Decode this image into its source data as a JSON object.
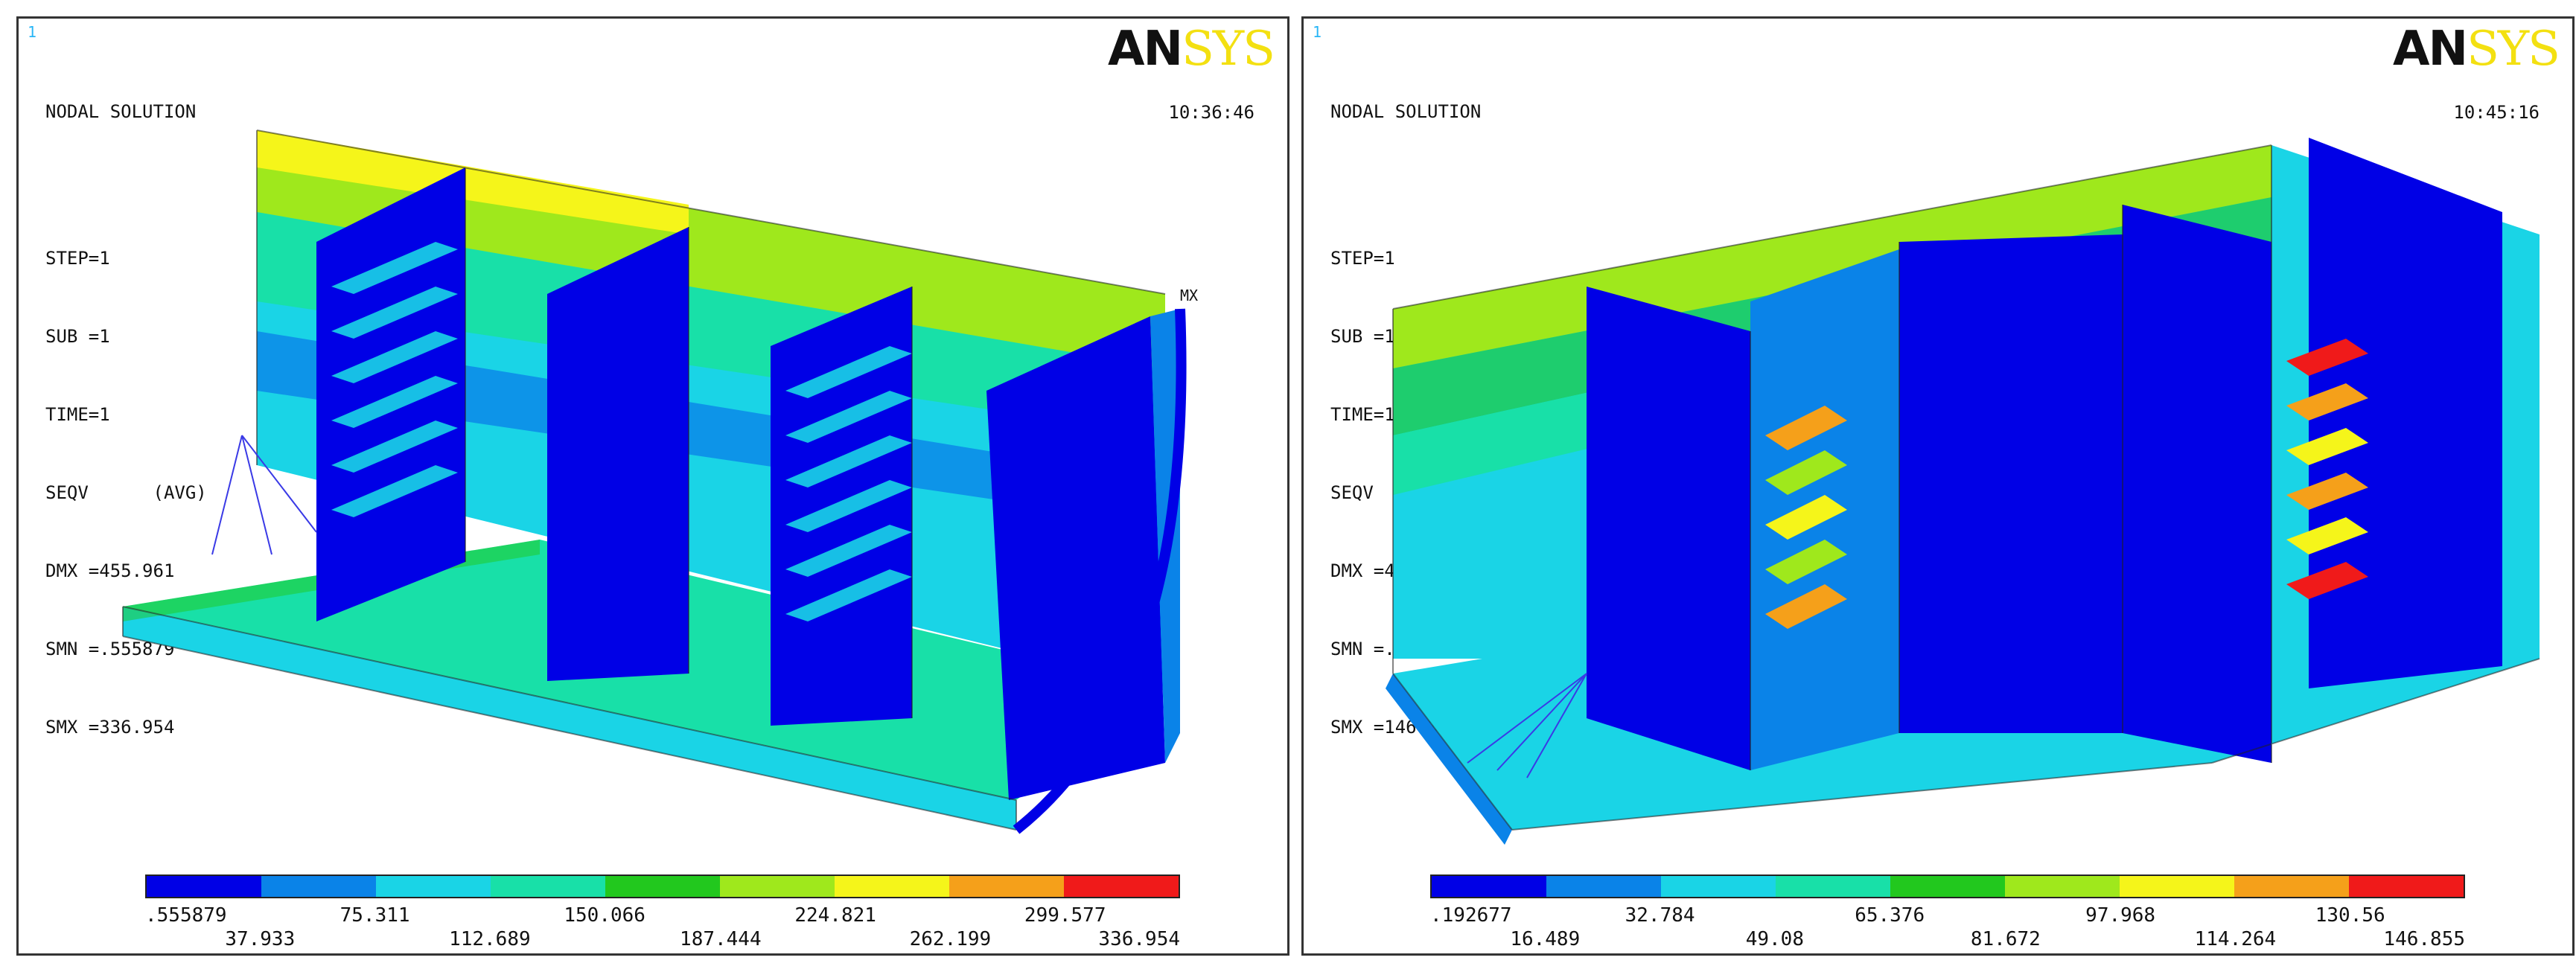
{
  "panels": [
    {
      "index": "1",
      "header": "NODAL SOLUTION",
      "info": [
        "STEP=1",
        "SUB =1",
        "TIME=1",
        "SEQV      (AVG)",
        "DMX =455.961",
        "SMN =.555879",
        "SMX =336.954"
      ],
      "time": "10:36:46",
      "max_marker": "MX",
      "logo_an": "AN",
      "logo_sys": "SYS",
      "legend_top": [
        ".555879",
        "75.311",
        "150.066",
        "224.821",
        "299.577"
      ],
      "legend_bottom": [
        "37.933",
        "112.689",
        "187.444",
        "262.199",
        "336.954"
      ]
    },
    {
      "index": "1",
      "header": "NODAL SOLUTION",
      "info": [
        "STEP=1",
        "SUB =1",
        "TIME=1",
        "SEQV      (AVG)",
        "DMX =422.43",
        "SMN =.192677",
        "SMX =146.855"
      ],
      "time": "10:45:16",
      "logo_an": "AN",
      "logo_sys": "SYS",
      "legend_top": [
        ".192677",
        "32.784",
        "65.376",
        "97.968",
        "130.56"
      ],
      "legend_bottom": [
        "16.489",
        "49.08",
        "81.672",
        "114.264",
        "146.855"
      ]
    }
  ],
  "colors": {
    "contour": [
      "#0000e6",
      "#0a83e8",
      "#1ad4e6",
      "#18e0a8",
      "#22c81e",
      "#9fe81c",
      "#f5f51a",
      "#f5a01a",
      "#f01a1a"
    ]
  }
}
